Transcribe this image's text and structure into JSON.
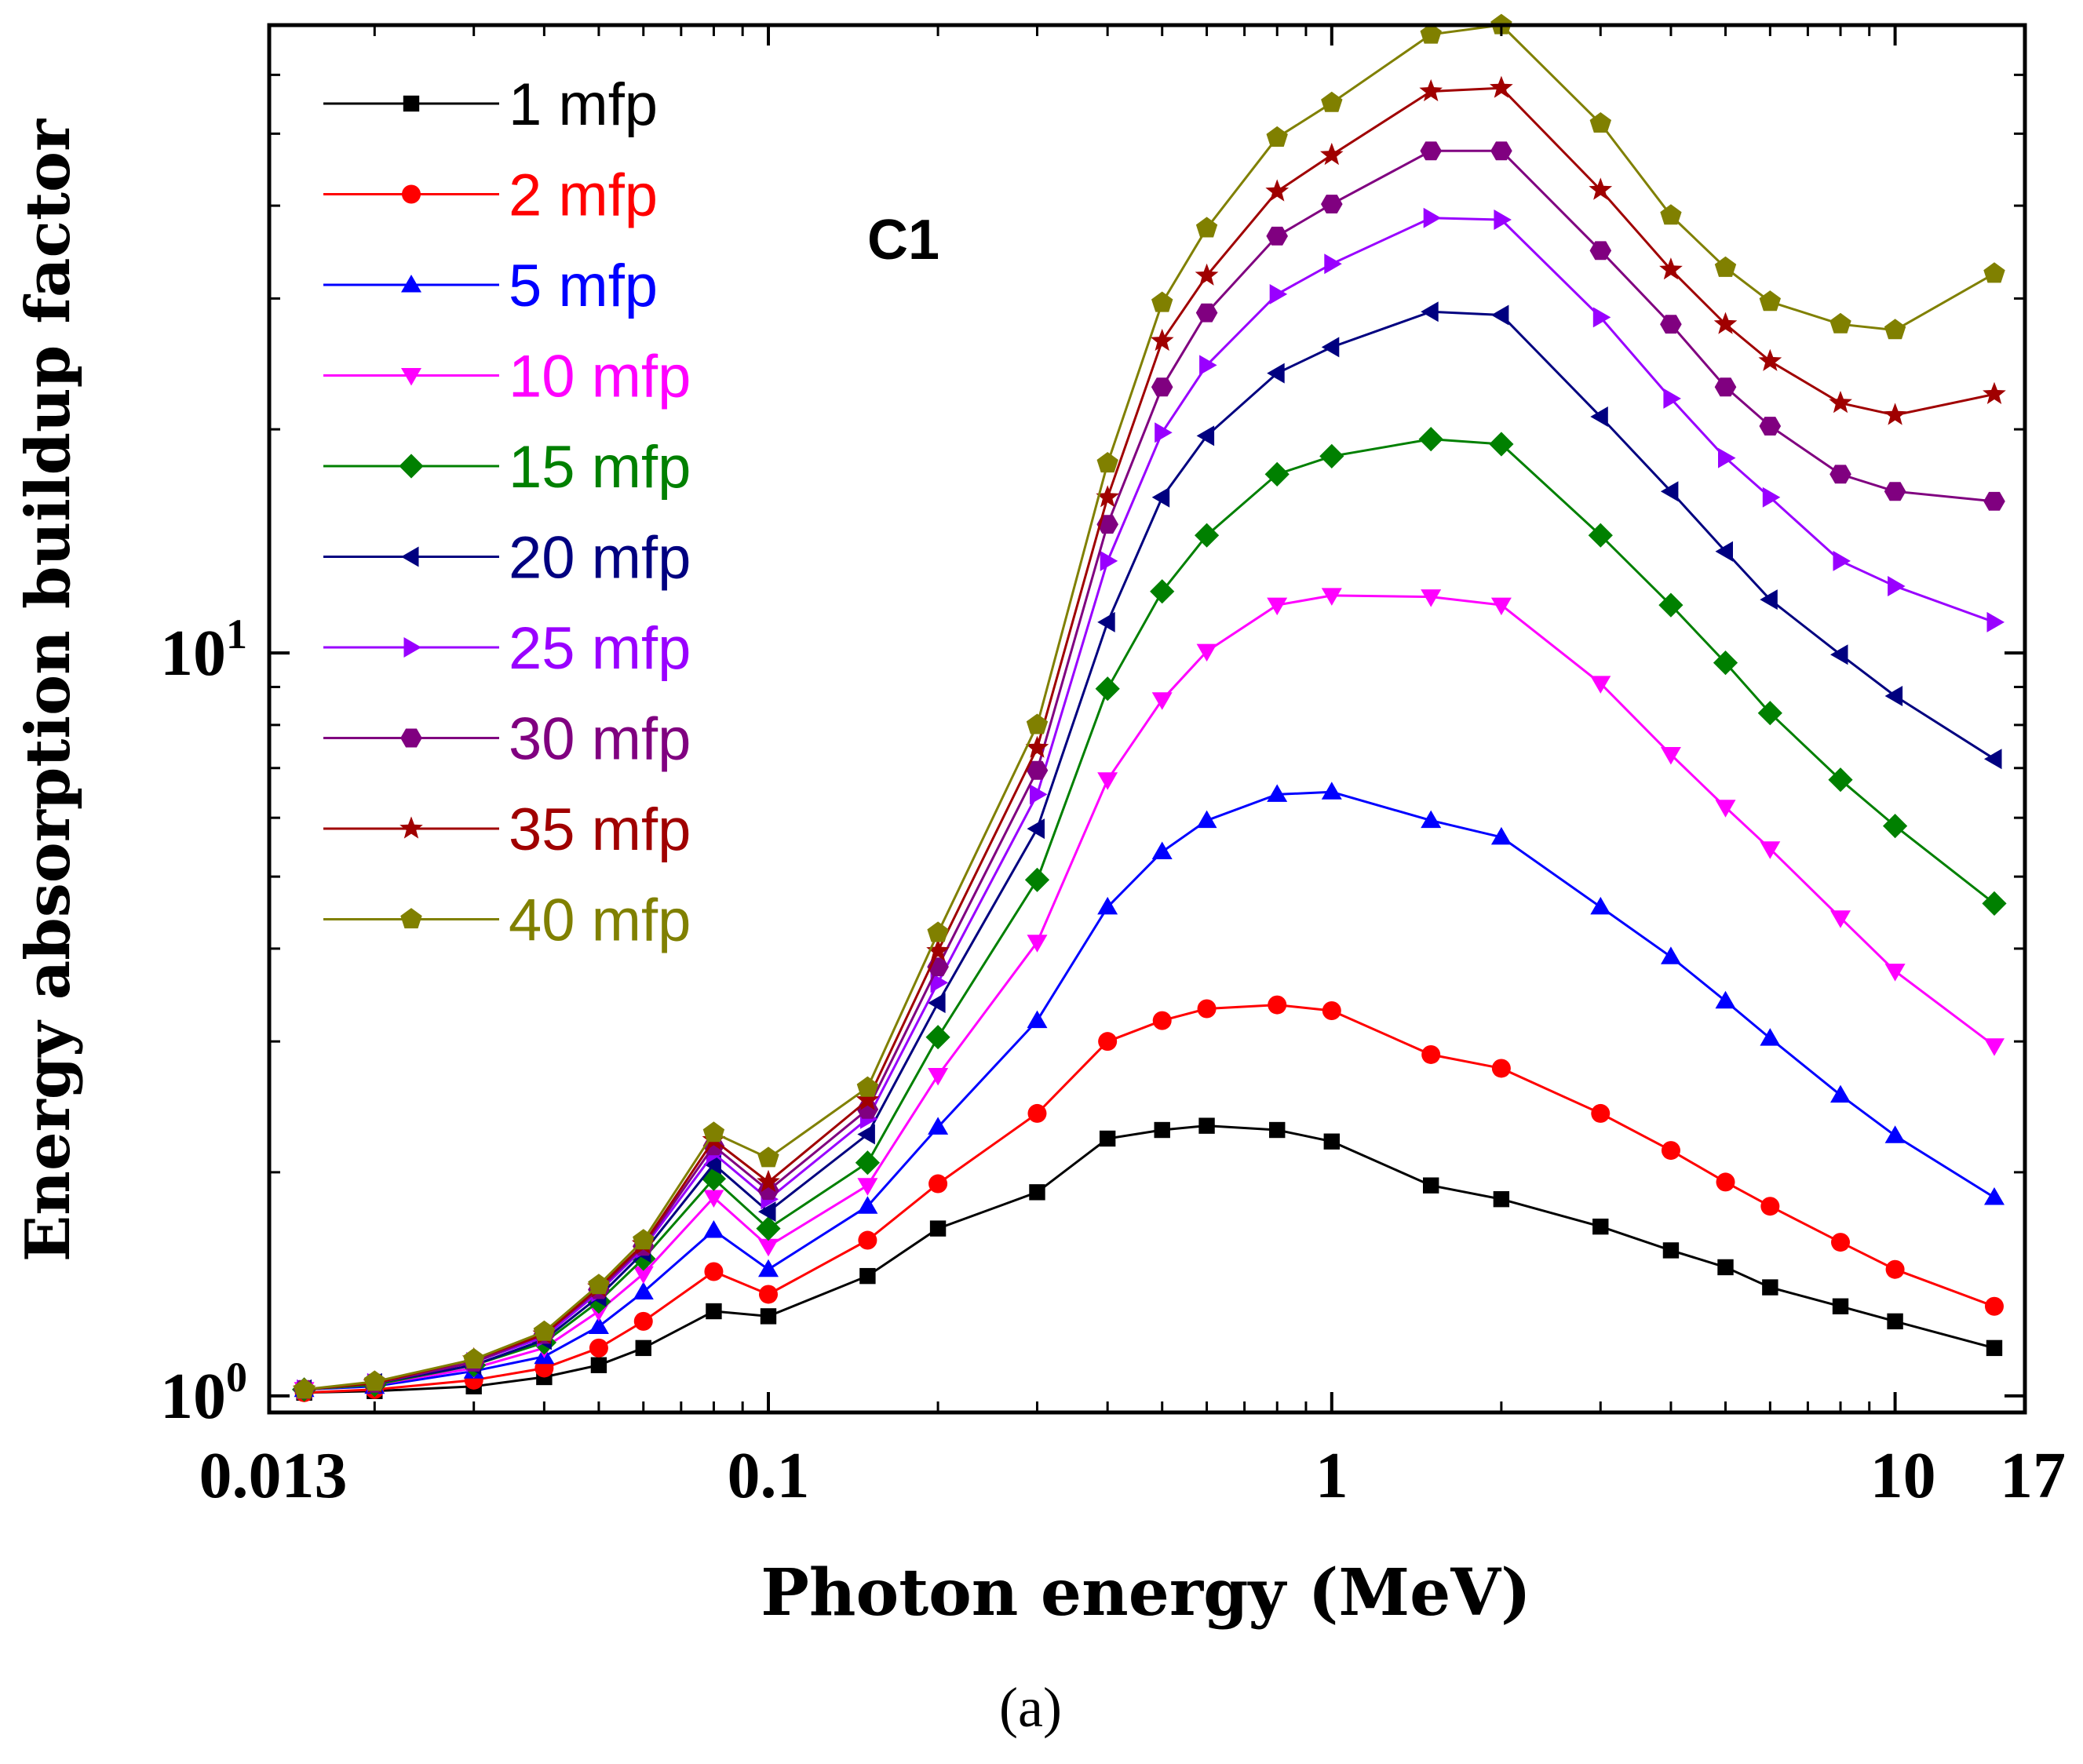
{
  "chart_data": {
    "type": "line",
    "title": "",
    "annotation": "C1",
    "caption": "(a)",
    "xlabel": "Photon energy (MeV)",
    "ylabel": "Energy absorption buildup factor",
    "xscale": "log",
    "yscale": "log",
    "xlim": [
      0.013,
      17
    ],
    "ylim": [
      0.95,
      70
    ],
    "x_ticks": [
      {
        "value": 0.013,
        "label": "0.013"
      },
      {
        "value": 0.1,
        "label": "0.1"
      },
      {
        "value": 1,
        "label": "1"
      },
      {
        "value": 10,
        "label": "10"
      },
      {
        "value": 17,
        "label": "17"
      }
    ],
    "y_ticks": [
      {
        "value": 1,
        "base": "10",
        "exp": "0"
      },
      {
        "value": 10,
        "base": "10",
        "exp": "1"
      }
    ],
    "grid": false,
    "legend_position": "top-left",
    "x": [
      0.015,
      0.02,
      0.03,
      0.04,
      0.05,
      0.06,
      0.08,
      0.1,
      0.15,
      0.2,
      0.3,
      0.4,
      0.5,
      0.6,
      0.8,
      1,
      1.5,
      2,
      3,
      4,
      5,
      6,
      8,
      10,
      15
    ],
    "series": [
      {
        "name": "1 mfp",
        "color": "#000000",
        "marker": "square",
        "values": [
          1.01,
          1.015,
          1.03,
          1.06,
          1.1,
          1.16,
          1.3,
          1.28,
          1.45,
          1.68,
          1.88,
          2.22,
          2.28,
          2.31,
          2.28,
          2.2,
          1.92,
          1.84,
          1.69,
          1.57,
          1.49,
          1.4,
          1.32,
          1.26,
          1.16
        ]
      },
      {
        "name": "2 mfp",
        "color": "#ff0000",
        "marker": "circle",
        "values": [
          1.01,
          1.02,
          1.05,
          1.09,
          1.16,
          1.26,
          1.47,
          1.37,
          1.62,
          1.93,
          2.4,
          3.0,
          3.2,
          3.32,
          3.36,
          3.3,
          2.88,
          2.76,
          2.4,
          2.14,
          1.94,
          1.8,
          1.61,
          1.48,
          1.32
        ]
      },
      {
        "name": "5 mfp",
        "color": "#0000ff",
        "marker": "triangle-up",
        "values": [
          1.02,
          1.03,
          1.08,
          1.13,
          1.24,
          1.38,
          1.67,
          1.48,
          1.8,
          2.3,
          3.2,
          4.55,
          5.4,
          5.95,
          6.45,
          6.5,
          5.95,
          5.65,
          4.55,
          3.9,
          3.4,
          3.03,
          2.54,
          2.24,
          1.85
        ]
      },
      {
        "name": "10 mfp",
        "color": "#ff00ff",
        "marker": "triangle-down",
        "values": [
          1.02,
          1.035,
          1.09,
          1.16,
          1.3,
          1.46,
          1.85,
          1.59,
          1.92,
          2.7,
          4.08,
          6.75,
          8.65,
          10.05,
          11.6,
          11.95,
          11.9,
          11.6,
          9.1,
          7.3,
          6.2,
          5.45,
          4.4,
          3.73,
          2.96
        ]
      },
      {
        "name": "15 mfp",
        "color": "#008000",
        "marker": "diamond",
        "values": [
          1.02,
          1.035,
          1.1,
          1.18,
          1.34,
          1.53,
          1.96,
          1.68,
          2.06,
          3.04,
          4.95,
          8.95,
          12.1,
          14.4,
          17.4,
          18.4,
          19.4,
          19.1,
          14.4,
          11.6,
          9.7,
          8.3,
          6.75,
          5.85,
          4.6
        ]
      },
      {
        "name": "20 mfp",
        "color": "#000080",
        "marker": "triangle-left",
        "values": [
          1.02,
          1.04,
          1.1,
          1.19,
          1.36,
          1.56,
          2.05,
          1.77,
          2.25,
          3.38,
          5.8,
          11.0,
          16.2,
          19.6,
          23.8,
          25.8,
          28.8,
          28.5,
          20.8,
          16.5,
          13.7,
          11.8,
          9.95,
          8.75,
          7.2
        ]
      },
      {
        "name": "25 mfp",
        "color": "#9900ff",
        "marker": "triangle-right",
        "values": [
          1.02,
          1.04,
          1.11,
          1.2,
          1.38,
          1.58,
          2.12,
          1.84,
          2.36,
          3.6,
          6.45,
          13.3,
          19.8,
          24.4,
          30.4,
          33.4,
          38.5,
          38.3,
          28.3,
          22.0,
          18.3,
          16.2,
          13.3,
          12.3,
          11.0
        ]
      },
      {
        "name": "30 mfp",
        "color": "#800080",
        "marker": "hexagon",
        "values": [
          1.02,
          1.04,
          1.11,
          1.21,
          1.39,
          1.59,
          2.17,
          1.89,
          2.43,
          3.78,
          6.95,
          14.9,
          22.8,
          28.7,
          36.4,
          40.2,
          47.4,
          47.4,
          34.8,
          27.7,
          22.8,
          20.2,
          17.4,
          16.5,
          16.0
        ]
      },
      {
        "name": "35 mfp",
        "color": "#a00000",
        "marker": "star",
        "values": [
          1.02,
          1.04,
          1.12,
          1.21,
          1.4,
          1.6,
          2.21,
          1.94,
          2.5,
          3.97,
          7.45,
          16.2,
          26.3,
          32.2,
          41.8,
          46.8,
          57.0,
          57.6,
          42.0,
          32.8,
          27.7,
          24.7,
          21.7,
          20.9,
          22.3
        ]
      },
      {
        "name": "40 mfp",
        "color": "#808000",
        "marker": "pentagon",
        "values": [
          1.02,
          1.045,
          1.12,
          1.22,
          1.41,
          1.62,
          2.26,
          2.09,
          2.6,
          4.2,
          8.0,
          18.0,
          29.6,
          37.3,
          49.4,
          55.0,
          68.0,
          70.0,
          51.6,
          38.8,
          33.0,
          29.7,
          27.7,
          27.2,
          32.4
        ]
      }
    ]
  }
}
